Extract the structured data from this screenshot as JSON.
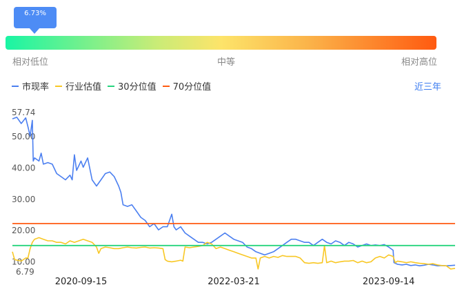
{
  "percentile": {
    "value_label": "6.73%",
    "value_fraction": 0.0673,
    "low_label": "相对低位",
    "mid_label": "中等",
    "high_label": "相对高位"
  },
  "period_label": "近三年",
  "colors": {
    "market_rate": "#4b7ff0",
    "industry": "#f8c723",
    "p30": "#25d47d",
    "p70": "#ff5a10",
    "accent": "#4d8cf5"
  },
  "chart_data": {
    "type": "line",
    "y_top_label": "57.74",
    "y_bottom_label": "6.79",
    "yticks": [
      "50.00",
      "40.00",
      "30.00",
      "20.00",
      "10.00"
    ],
    "ylim": [
      6.79,
      57.74
    ],
    "xticks": [
      {
        "label": "2020-09-15",
        "t": 0.155
      },
      {
        "label": "2022-03-21",
        "t": 0.5
      },
      {
        "label": "2023-09-14",
        "t": 0.85
      }
    ],
    "series": [
      {
        "name": "市现率",
        "color": "#4b7ff0",
        "points": [
          [
            0,
            55.5
          ],
          [
            0.01,
            56
          ],
          [
            0.02,
            54
          ],
          [
            0.03,
            55.8
          ],
          [
            0.035,
            53
          ],
          [
            0.04,
            50
          ],
          [
            0.045,
            55
          ],
          [
            0.047,
            42
          ],
          [
            0.05,
            43
          ],
          [
            0.06,
            42
          ],
          [
            0.065,
            44.5
          ],
          [
            0.07,
            41
          ],
          [
            0.08,
            41.5
          ],
          [
            0.09,
            41
          ],
          [
            0.1,
            38
          ],
          [
            0.11,
            37
          ],
          [
            0.12,
            36
          ],
          [
            0.13,
            37.5
          ],
          [
            0.135,
            36
          ],
          [
            0.14,
            44
          ],
          [
            0.145,
            39
          ],
          [
            0.155,
            42
          ],
          [
            0.16,
            40
          ],
          [
            0.17,
            43
          ],
          [
            0.18,
            36
          ],
          [
            0.19,
            34
          ],
          [
            0.2,
            36
          ],
          [
            0.21,
            38
          ],
          [
            0.22,
            38.5
          ],
          [
            0.23,
            37
          ],
          [
            0.24,
            34
          ],
          [
            0.245,
            32
          ],
          [
            0.25,
            28
          ],
          [
            0.26,
            27.5
          ],
          [
            0.27,
            28
          ],
          [
            0.28,
            26
          ],
          [
            0.29,
            24
          ],
          [
            0.3,
            23
          ],
          [
            0.31,
            21
          ],
          [
            0.32,
            22
          ],
          [
            0.33,
            20
          ],
          [
            0.34,
            21
          ],
          [
            0.35,
            21
          ],
          [
            0.36,
            25
          ],
          [
            0.365,
            21
          ],
          [
            0.37,
            20
          ],
          [
            0.38,
            21
          ],
          [
            0.39,
            19
          ],
          [
            0.4,
            18
          ],
          [
            0.41,
            17
          ],
          [
            0.42,
            16
          ],
          [
            0.43,
            16
          ],
          [
            0.44,
            15.5
          ],
          [
            0.45,
            16
          ],
          [
            0.46,
            17
          ],
          [
            0.47,
            18
          ],
          [
            0.48,
            19
          ],
          [
            0.49,
            18
          ],
          [
            0.5,
            17
          ],
          [
            0.51,
            16.5
          ],
          [
            0.52,
            16
          ],
          [
            0.53,
            14.5
          ],
          [
            0.54,
            14
          ],
          [
            0.55,
            13
          ],
          [
            0.56,
            12.5
          ],
          [
            0.57,
            12
          ],
          [
            0.58,
            12.5
          ],
          [
            0.59,
            13
          ],
          [
            0.6,
            14
          ],
          [
            0.61,
            15
          ],
          [
            0.62,
            16
          ],
          [
            0.63,
            17
          ],
          [
            0.64,
            17
          ],
          [
            0.65,
            16.5
          ],
          [
            0.66,
            16
          ],
          [
            0.67,
            16
          ],
          [
            0.68,
            15
          ],
          [
            0.69,
            16
          ],
          [
            0.7,
            17
          ],
          [
            0.71,
            16
          ],
          [
            0.72,
            15.5
          ],
          [
            0.73,
            16.5
          ],
          [
            0.74,
            16
          ],
          [
            0.75,
            15
          ],
          [
            0.76,
            16
          ],
          [
            0.77,
            15.5
          ],
          [
            0.78,
            14.5
          ],
          [
            0.79,
            15
          ],
          [
            0.8,
            15.5
          ],
          [
            0.81,
            15
          ],
          [
            0.82,
            15.2
          ],
          [
            0.83,
            15
          ],
          [
            0.84,
            15.3
          ],
          [
            0.85,
            14.5
          ],
          [
            0.86,
            13.5
          ],
          [
            0.862,
            9.5
          ],
          [
            0.87,
            9
          ],
          [
            0.88,
            8.8
          ],
          [
            0.89,
            9
          ],
          [
            0.9,
            8.6
          ],
          [
            0.91,
            8.8
          ],
          [
            0.92,
            8.5
          ],
          [
            0.93,
            8.7
          ],
          [
            0.94,
            9
          ],
          [
            0.95,
            8.8
          ],
          [
            0.96,
            8.5
          ],
          [
            0.97,
            8.6
          ],
          [
            0.98,
            8.5
          ],
          [
            0.99,
            8.6
          ],
          [
            1,
            8.7
          ]
        ]
      },
      {
        "name": "行业估值",
        "color": "#f8c723",
        "points": [
          [
            0,
            13
          ],
          [
            0.005,
            10.5
          ],
          [
            0.02,
            10
          ],
          [
            0.03,
            11
          ],
          [
            0.035,
            11
          ],
          [
            0.04,
            14
          ],
          [
            0.045,
            16
          ],
          [
            0.05,
            17
          ],
          [
            0.06,
            17.5
          ],
          [
            0.07,
            17
          ],
          [
            0.08,
            16.5
          ],
          [
            0.09,
            16.5
          ],
          [
            0.1,
            16
          ],
          [
            0.11,
            16
          ],
          [
            0.12,
            15.5
          ],
          [
            0.13,
            16.5
          ],
          [
            0.14,
            16
          ],
          [
            0.15,
            16.5
          ],
          [
            0.16,
            17
          ],
          [
            0.17,
            16.5
          ],
          [
            0.18,
            16
          ],
          [
            0.19,
            14.5
          ],
          [
            0.195,
            12.5
          ],
          [
            0.2,
            14
          ],
          [
            0.21,
            14.5
          ],
          [
            0.22,
            14.3
          ],
          [
            0.23,
            14
          ],
          [
            0.24,
            14
          ],
          [
            0.25,
            14.3
          ],
          [
            0.26,
            14.5
          ],
          [
            0.27,
            14.3
          ],
          [
            0.28,
            14.2
          ],
          [
            0.29,
            14.4
          ],
          [
            0.3,
            14.5
          ],
          [
            0.31,
            14.2
          ],
          [
            0.32,
            14.3
          ],
          [
            0.33,
            14.2
          ],
          [
            0.34,
            14
          ],
          [
            0.345,
            10.5
          ],
          [
            0.35,
            10
          ],
          [
            0.36,
            9.8
          ],
          [
            0.37,
            10
          ],
          [
            0.38,
            10.3
          ],
          [
            0.385,
            10
          ],
          [
            0.39,
            14.5
          ],
          [
            0.4,
            14.3
          ],
          [
            0.41,
            14.5
          ],
          [
            0.42,
            14.7
          ],
          [
            0.43,
            15
          ],
          [
            0.44,
            16
          ],
          [
            0.45,
            15.5
          ],
          [
            0.46,
            14
          ],
          [
            0.47,
            14.5
          ],
          [
            0.48,
            14
          ],
          [
            0.49,
            13.5
          ],
          [
            0.5,
            13
          ],
          [
            0.51,
            12.5
          ],
          [
            0.52,
            12
          ],
          [
            0.53,
            11.5
          ],
          [
            0.54,
            11
          ],
          [
            0.55,
            11
          ],
          [
            0.555,
            7.5
          ],
          [
            0.56,
            11
          ],
          [
            0.57,
            11.5
          ],
          [
            0.58,
            11
          ],
          [
            0.59,
            11.5
          ],
          [
            0.6,
            11.2
          ],
          [
            0.61,
            11.8
          ],
          [
            0.62,
            11.5
          ],
          [
            0.63,
            11.5
          ],
          [
            0.64,
            11.5
          ],
          [
            0.65,
            11
          ],
          [
            0.66,
            9.5
          ],
          [
            0.67,
            9.3
          ],
          [
            0.68,
            9.5
          ],
          [
            0.69,
            9.3
          ],
          [
            0.7,
            9.5
          ],
          [
            0.705,
            15
          ],
          [
            0.71,
            9.5
          ],
          [
            0.72,
            10
          ],
          [
            0.73,
            9.5
          ],
          [
            0.74,
            9.8
          ],
          [
            0.75,
            10
          ],
          [
            0.76,
            10
          ],
          [
            0.77,
            10.2
          ],
          [
            0.78,
            9.5
          ],
          [
            0.79,
            10
          ],
          [
            0.8,
            9.5
          ],
          [
            0.81,
            9.8
          ],
          [
            0.82,
            11
          ],
          [
            0.83,
            11.5
          ],
          [
            0.84,
            11
          ],
          [
            0.85,
            12
          ],
          [
            0.86,
            11.5
          ],
          [
            0.865,
            9.5
          ],
          [
            0.87,
            10
          ],
          [
            0.88,
            9.8
          ],
          [
            0.89,
            9.5
          ],
          [
            0.9,
            9.8
          ],
          [
            0.91,
            9.5
          ],
          [
            0.92,
            9.3
          ],
          [
            0.93,
            9.2
          ],
          [
            0.94,
            9
          ],
          [
            0.95,
            9.2
          ],
          [
            0.96,
            8.8
          ],
          [
            0.97,
            8.6
          ],
          [
            0.98,
            8.5
          ],
          [
            0.99,
            7.5
          ],
          [
            1,
            7.7
          ]
        ]
      },
      {
        "name": "30分位值",
        "color": "#25d47d",
        "points": [
          [
            0,
            15
          ],
          [
            1,
            15
          ]
        ]
      },
      {
        "name": "70分位值",
        "color": "#ff5a10",
        "points": [
          [
            0,
            22
          ],
          [
            1,
            22
          ]
        ]
      }
    ]
  }
}
